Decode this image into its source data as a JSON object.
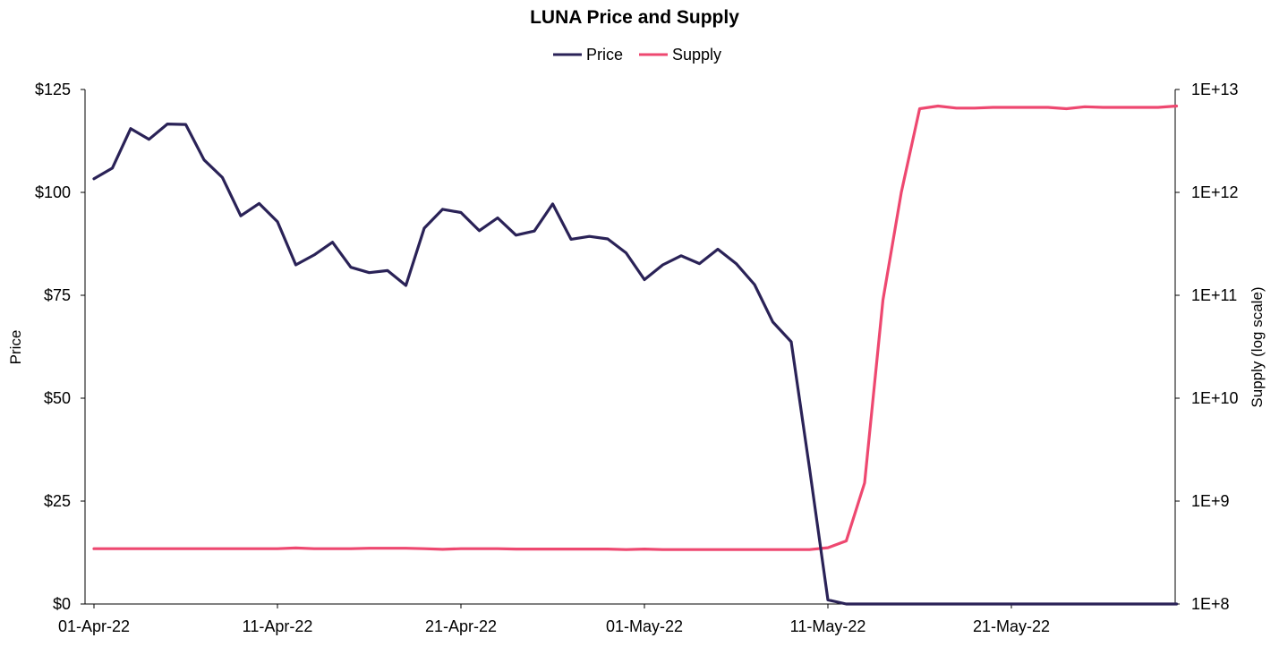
{
  "chart_data": {
    "type": "line",
    "title": "LUNA Price and Supply",
    "legend": {
      "placement": "top-center",
      "entries": [
        "Price",
        "Supply"
      ]
    },
    "x": [
      "01-Apr-22",
      "02-Apr-22",
      "03-Apr-22",
      "04-Apr-22",
      "05-Apr-22",
      "06-Apr-22",
      "07-Apr-22",
      "08-Apr-22",
      "09-Apr-22",
      "10-Apr-22",
      "11-Apr-22",
      "12-Apr-22",
      "13-Apr-22",
      "14-Apr-22",
      "15-Apr-22",
      "16-Apr-22",
      "17-Apr-22",
      "18-Apr-22",
      "19-Apr-22",
      "20-Apr-22",
      "21-Apr-22",
      "22-Apr-22",
      "23-Apr-22",
      "24-Apr-22",
      "25-Apr-22",
      "26-Apr-22",
      "27-Apr-22",
      "28-Apr-22",
      "29-Apr-22",
      "30-Apr-22",
      "01-May-22",
      "02-May-22",
      "03-May-22",
      "04-May-22",
      "05-May-22",
      "06-May-22",
      "07-May-22",
      "08-May-22",
      "09-May-22",
      "10-May-22",
      "11-May-22",
      "12-May-22",
      "13-May-22",
      "14-May-22",
      "15-May-22",
      "16-May-22",
      "17-May-22",
      "18-May-22",
      "19-May-22",
      "20-May-22",
      "21-May-22",
      "22-May-22",
      "23-May-22",
      "24-May-22",
      "25-May-22",
      "26-May-22",
      "27-May-22",
      "28-May-22",
      "29-May-22",
      "30-May-22"
    ],
    "x_tick_labels": [
      "01-Apr-22",
      "11-Apr-22",
      "21-Apr-22",
      "01-May-22",
      "11-May-22",
      "21-May-22"
    ],
    "series": [
      {
        "name": "Price",
        "axis": "left",
        "color": "#2a2257",
        "values": [
          103.3,
          105.9,
          115.5,
          112.9,
          116.6,
          116.5,
          107.9,
          103.6,
          94.3,
          97.3,
          92.9,
          82.4,
          84.8,
          87.9,
          81.8,
          80.5,
          81.0,
          77.4,
          91.3,
          95.9,
          95.1,
          90.7,
          93.8,
          89.6,
          90.6,
          97.2,
          88.6,
          89.3,
          88.7,
          85.3,
          78.8,
          82.4,
          84.6,
          82.7,
          86.2,
          82.7,
          77.6,
          68.5,
          63.7,
          32.9,
          1.0,
          0.0,
          0.0,
          0.0,
          0.0,
          0.0,
          0.0,
          0.0,
          0.0,
          0.0,
          0.0,
          0.0,
          0.0,
          0.0,
          0.0,
          0.0,
          0.0,
          0.0,
          0.0,
          0.0
        ]
      },
      {
        "name": "Supply",
        "axis": "right",
        "color": "#ee4870",
        "values": [
          345000000,
          345000000,
          345000000,
          345000000,
          345000000,
          345000000,
          345000000,
          345000000,
          345000000,
          345000000,
          345000000,
          350000000,
          345000000,
          345000000,
          345000000,
          348000000,
          348000000,
          348000000,
          345000000,
          340000000,
          345000000,
          345000000,
          345000000,
          342000000,
          342000000,
          342000000,
          342000000,
          342000000,
          342000000,
          338000000,
          342000000,
          338000000,
          338000000,
          338000000,
          338000000,
          338000000,
          338000000,
          338000000,
          338000000,
          338000000,
          352000000,
          410000000,
          1500000000,
          90000000000,
          1000000000000,
          6500000000000,
          6900000000000,
          6600000000000,
          6600000000000,
          6700000000000,
          6700000000000,
          6700000000000,
          6700000000000,
          6500000000000,
          6800000000000,
          6700000000000,
          6700000000000,
          6700000000000,
          6700000000000,
          6900000000000
        ]
      }
    ],
    "yaxis_left": {
      "label": "Price",
      "lim": [
        0,
        125
      ],
      "ticks": [
        0,
        25,
        50,
        75,
        100,
        125
      ],
      "tick_labels": [
        "$0",
        "$25",
        "$50",
        "$75",
        "$100",
        "$125"
      ]
    },
    "yaxis_right": {
      "label": "Supply (log scale)",
      "scale": "log",
      "lim": [
        100000000,
        10000000000000
      ],
      "ticks": [
        100000000,
        1000000000,
        10000000000,
        100000000000,
        1000000000000,
        10000000000000
      ],
      "tick_labels": [
        "1E+8",
        "1E+9",
        "1E+10",
        "1E+11",
        "1E+12",
        "1E+13"
      ]
    },
    "grid": false
  }
}
